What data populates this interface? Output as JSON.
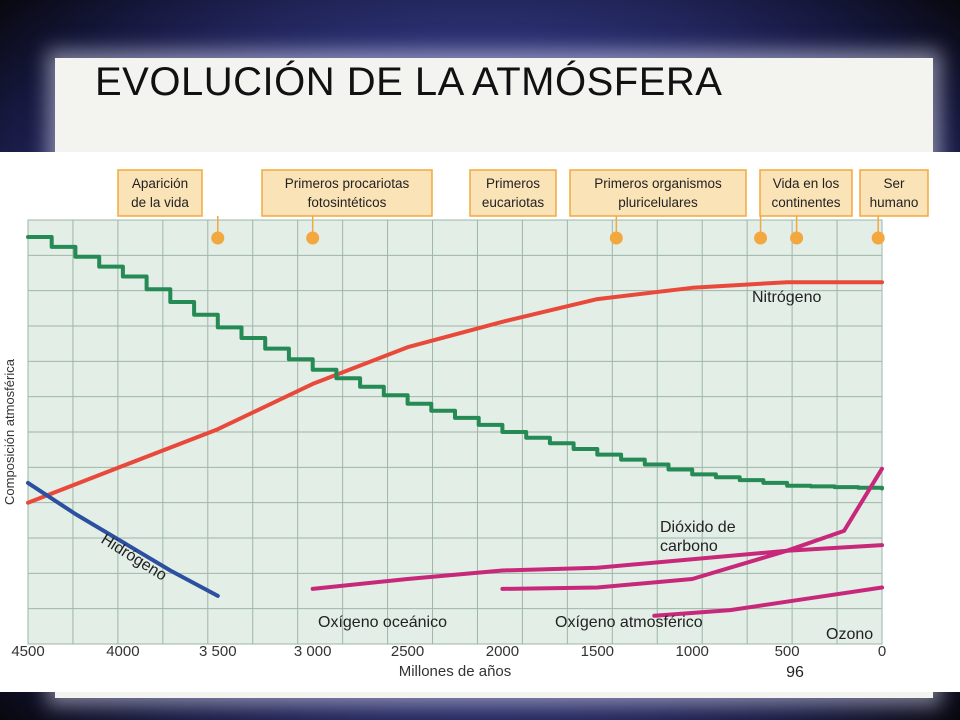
{
  "slide": {
    "title": "EVOLUCIÓN DE LA ATMÓSFERA",
    "page_number": "96"
  },
  "colors": {
    "nitrogen": "#e8493b",
    "carbon_dioxide": "#268a55",
    "hydrogen": "#2c4fa0",
    "oxygen": "#c8287a",
    "ozone": "#c8287a",
    "plot_background": "#e2eee6",
    "grid": "#9eb6a8",
    "event_box": "#fbe3b8",
    "event_marker": "#f3a83f"
  },
  "chart_data": {
    "type": "line",
    "xlabel": "Millones de años",
    "ylabel": "Composición atmosférica",
    "xlim": [
      4500,
      0
    ],
    "x_axis_reversed": true,
    "x_ticks": [
      "4500",
      "4000",
      "3 500",
      "3 000",
      "2500",
      "2000",
      "1500",
      "1000",
      "500",
      "0"
    ],
    "grid": true,
    "events": [
      {
        "label_lines": [
          "Aparición",
          "de la vida"
        ],
        "x": 3500
      },
      {
        "label_lines": [
          "Primeros procariotas",
          "fotosintéticos"
        ],
        "x": 3000
      },
      {
        "label_lines": [
          "Primeros",
          "eucariotas"
        ],
        "x": 1400
      },
      {
        "label_lines": [
          "Primeros organismos",
          "pluricelulares"
        ],
        "x": 640
      },
      {
        "label_lines": [
          "Vida en los",
          "continentes"
        ],
        "x": 450
      },
      {
        "label_lines": [
          "Ser",
          "humano"
        ],
        "x": 20
      }
    ],
    "series": [
      {
        "name": "Nitrógeno",
        "label_lines": [
          "Nitrógeno"
        ],
        "color_key": "nitrogen",
        "points": [
          [
            4500,
            0.0
          ],
          [
            4000,
            0.13
          ],
          [
            3500,
            0.26
          ],
          [
            3000,
            0.42
          ],
          [
            2500,
            0.55
          ],
          [
            2000,
            0.64
          ],
          [
            1500,
            0.72
          ],
          [
            1000,
            0.76
          ],
          [
            500,
            0.78
          ],
          [
            0,
            0.78
          ]
        ]
      },
      {
        "name": "Dióxido de carbono",
        "label_lines": [
          "Dióxido de",
          "carbono"
        ],
        "color_key": "carbon_dioxide",
        "stepped": true,
        "points": [
          [
            4500,
            0.94
          ],
          [
            4000,
            0.8
          ],
          [
            3500,
            0.62
          ],
          [
            3000,
            0.47
          ],
          [
            2500,
            0.35
          ],
          [
            2000,
            0.25
          ],
          [
            1500,
            0.17
          ],
          [
            1000,
            0.1
          ],
          [
            500,
            0.06
          ],
          [
            0,
            0.05
          ]
        ]
      },
      {
        "name": "Hidrógeno",
        "label_lines": [
          "Hidrógeno"
        ],
        "color_key": "hydrogen",
        "points": [
          [
            4500,
            0.07
          ],
          [
            4250,
            -0.04
          ],
          [
            4000,
            -0.14
          ],
          [
            3750,
            -0.24
          ],
          [
            3500,
            -0.33
          ]
        ]
      },
      {
        "name": "Oxígeno oceánico",
        "label_lines": [
          "Oxígeno oceánico"
        ],
        "color_key": "oxygen",
        "points": [
          [
            3000,
            -0.305
          ],
          [
            2500,
            -0.27
          ],
          [
            2000,
            -0.24
          ],
          [
            1500,
            -0.23
          ],
          [
            1000,
            -0.2
          ],
          [
            500,
            -0.17
          ],
          [
            0,
            -0.15
          ]
        ]
      },
      {
        "name": "Oxígeno atmosférico",
        "label_lines": [
          "Oxígeno atmosférico"
        ],
        "color_key": "oxygen",
        "points": [
          [
            2000,
            -0.305
          ],
          [
            1500,
            -0.3
          ],
          [
            1000,
            -0.27
          ],
          [
            500,
            -0.17
          ],
          [
            200,
            -0.1
          ],
          [
            0,
            0.12
          ]
        ]
      },
      {
        "name": "Ozono",
        "label_lines": [
          "Ozono"
        ],
        "color_key": "ozone",
        "points": [
          [
            1200,
            -0.4
          ],
          [
            800,
            -0.38
          ],
          [
            400,
            -0.34
          ],
          [
            0,
            -0.3
          ]
        ]
      }
    ]
  }
}
